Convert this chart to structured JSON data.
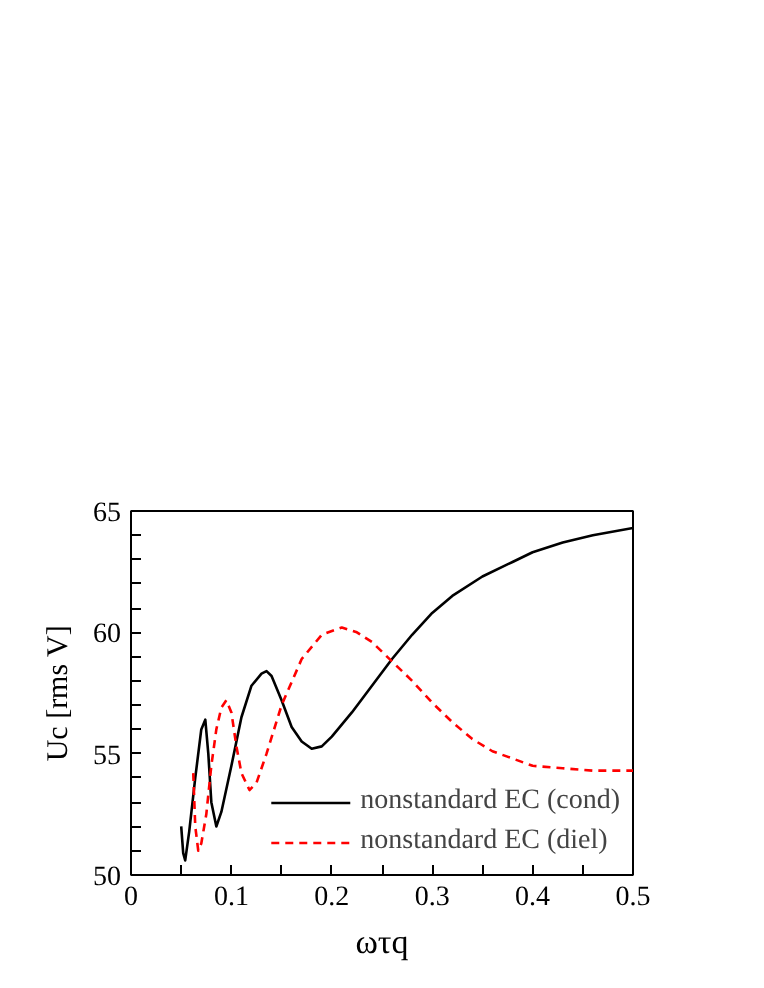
{
  "chart_data": {
    "type": "line",
    "xlabel": "ωτq",
    "ylabel": "Uc [rms V]",
    "xlim": [
      0,
      0.5
    ],
    "ylim": [
      50,
      65
    ],
    "xticks": [
      0,
      {
        "value": 0.05,
        "label": null
      },
      0.1,
      {
        "value": 0.15,
        "label": null
      },
      0.2,
      {
        "value": 0.25,
        "label": null
      },
      0.3,
      {
        "value": 0.35,
        "label": null
      },
      0.4,
      {
        "value": 0.45,
        "label": null
      },
      0.5
    ],
    "yticks": [
      50,
      {
        "value": 51,
        "label": null
      },
      {
        "value": 52,
        "label": null
      },
      {
        "value": 53,
        "label": null
      },
      {
        "value": 54,
        "label": null
      },
      55,
      {
        "value": 56,
        "label": null
      },
      {
        "value": 57,
        "label": null
      },
      {
        "value": 58,
        "label": null
      },
      {
        "value": 59,
        "label": null
      },
      60,
      {
        "value": 61,
        "label": null
      },
      {
        "value": 62,
        "label": null
      },
      {
        "value": 63,
        "label": null
      },
      {
        "value": 64,
        "label": null
      },
      65
    ],
    "grid": false,
    "legend": "bottom right",
    "series": [
      {
        "name": "nonstandard EC (cond)",
        "color": "#000000",
        "line_style": "solid",
        "x": [
          0.05,
          0.052,
          0.054,
          0.058,
          0.064,
          0.07,
          0.074,
          0.077,
          0.08,
          0.085,
          0.09,
          0.1,
          0.11,
          0.12,
          0.13,
          0.135,
          0.14,
          0.15,
          0.16,
          0.17,
          0.18,
          0.19,
          0.2,
          0.22,
          0.24,
          0.26,
          0.28,
          0.3,
          0.32,
          0.35,
          0.38,
          0.4,
          0.43,
          0.46,
          0.5
        ],
        "values": [
          52.0,
          50.9,
          50.6,
          51.8,
          54.0,
          56.0,
          56.4,
          55.0,
          53.0,
          52.0,
          52.6,
          54.5,
          56.5,
          57.8,
          58.3,
          58.4,
          58.2,
          57.2,
          56.1,
          55.5,
          55.2,
          55.3,
          55.7,
          56.7,
          57.8,
          58.9,
          59.9,
          60.8,
          61.5,
          62.3,
          62.9,
          63.3,
          63.7,
          64.0,
          64.3
        ]
      },
      {
        "name": "nonstandard EC (diel)",
        "color": "#ff0000",
        "line_style": "dashed",
        "x": [
          0.062,
          0.064,
          0.067,
          0.07,
          0.075,
          0.08,
          0.085,
          0.09,
          0.095,
          0.1,
          0.105,
          0.11,
          0.118,
          0.125,
          0.135,
          0.15,
          0.17,
          0.19,
          0.21,
          0.225,
          0.24,
          0.26,
          0.28,
          0.3,
          0.32,
          0.34,
          0.36,
          0.38,
          0.4,
          0.43,
          0.46,
          0.5
        ],
        "values": [
          54.2,
          52.0,
          51.0,
          51.3,
          52.5,
          54.5,
          56.0,
          56.9,
          57.2,
          56.7,
          55.3,
          54.2,
          53.5,
          53.8,
          55.0,
          57.0,
          58.9,
          59.9,
          60.2,
          60.0,
          59.6,
          58.8,
          58.0,
          57.1,
          56.3,
          55.6,
          55.1,
          54.8,
          54.5,
          54.4,
          54.3,
          54.3
        ]
      }
    ]
  }
}
